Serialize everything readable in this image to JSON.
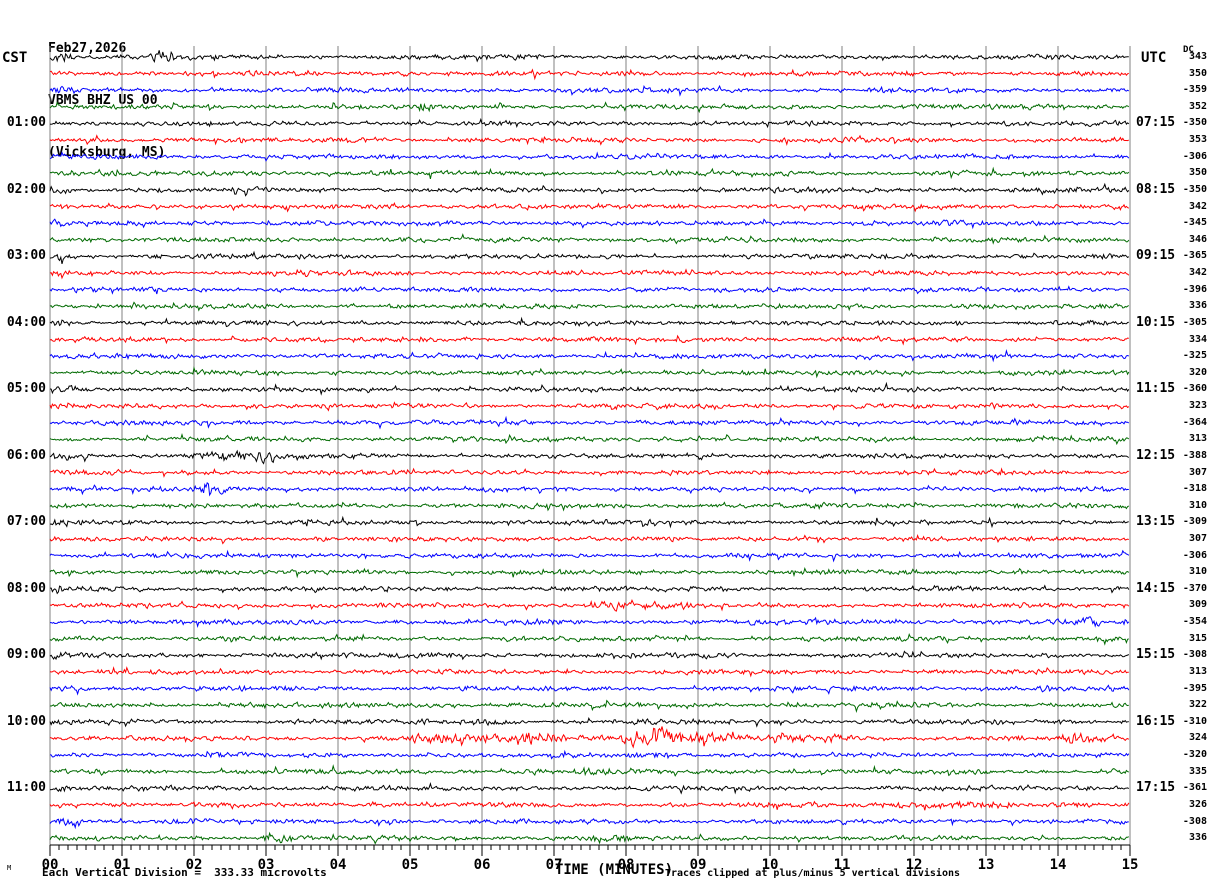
{
  "header": {
    "date": "Feb27,2026",
    "station": "VBMS BHZ US 00",
    "location": "(Vicksburg, MS)"
  },
  "axes": {
    "left_timezone": "CST",
    "right_timezone": "UTC",
    "dc_header": "DC",
    "x_title": "TIME (MINUTES)",
    "x_ticks": [
      "00",
      "01",
      "02",
      "03",
      "04",
      "05",
      "06",
      "07",
      "08",
      "09",
      "10",
      "11",
      "12",
      "13",
      "14",
      "15"
    ],
    "footer_scale": "Each Vertical Division =  333.33 microvolts",
    "footer_clip": "Traces clipped at plus/minus 5 vertical divisions",
    "corner_mark": "M"
  },
  "chart_data": {
    "type": "line",
    "subtype": "seismogram-helicorder",
    "title": "VBMS BHZ US 00 (Vicksburg, MS) Feb27,2026",
    "minutes_per_row": 15,
    "x_range": [
      0,
      15
    ],
    "xlabel": "TIME (MINUTES)",
    "grid": "vertical lines every 1 minute",
    "minor_ticks_per_minute": 8,
    "row_color_cycle": [
      "black",
      "red",
      "blue",
      "green"
    ],
    "colors": {
      "black": "#000000",
      "red": "#ff0000",
      "blue": "#0000ff",
      "green": "#006a00",
      "grid": "#808080"
    },
    "scale_note": "1 vertical division = 333.33 microvolts",
    "clip_note": "traces clipped at plus/minus 5 vertical divisions",
    "traces": [
      {
        "color": "black",
        "dc": 343,
        "events": [
          [
            0,
            0.35,
            4.5
          ],
          [
            1.42,
            1.72,
            4.5
          ]
        ]
      },
      {
        "color": "red",
        "dc": 350,
        "events": []
      },
      {
        "color": "blue",
        "dc": -359,
        "events": [
          [
            0,
            0.4,
            1.7
          ]
        ]
      },
      {
        "color": "green",
        "dc": 352,
        "events": [
          [
            5.05,
            5.35,
            2.6
          ]
        ]
      },
      {
        "color": "black",
        "dc": -350,
        "cst": "01:00",
        "utc": "07:15",
        "events": [
          [
            0,
            0.35,
            1.9
          ]
        ]
      },
      {
        "color": "red",
        "dc": 353,
        "events": []
      },
      {
        "color": "blue",
        "dc": -306,
        "events": []
      },
      {
        "color": "green",
        "dc": 350,
        "events": []
      },
      {
        "color": "black",
        "dc": -350,
        "cst": "02:00",
        "utc": "08:15",
        "events": [
          [
            0,
            0.35,
            1.9
          ]
        ]
      },
      {
        "color": "red",
        "dc": 342,
        "events": []
      },
      {
        "color": "blue",
        "dc": -345,
        "events": [
          [
            0,
            0.3,
            1.6
          ]
        ]
      },
      {
        "color": "green",
        "dc": 346,
        "events": []
      },
      {
        "color": "black",
        "dc": -365,
        "cst": "03:00",
        "utc": "09:15",
        "events": [
          [
            0,
            0.4,
            2.0
          ]
        ]
      },
      {
        "color": "red",
        "dc": 342,
        "events": []
      },
      {
        "color": "blue",
        "dc": -396,
        "events": []
      },
      {
        "color": "green",
        "dc": 336,
        "events": []
      },
      {
        "color": "black",
        "dc": -305,
        "cst": "04:00",
        "utc": "10:15",
        "events": [
          [
            0,
            0.35,
            1.8
          ]
        ]
      },
      {
        "color": "red",
        "dc": 334,
        "events": []
      },
      {
        "color": "blue",
        "dc": -325,
        "events": []
      },
      {
        "color": "green",
        "dc": 320,
        "events": []
      },
      {
        "color": "black",
        "dc": -360,
        "cst": "05:00",
        "utc": "11:15",
        "events": [
          [
            0,
            0.4,
            1.9
          ]
        ]
      },
      {
        "color": "red",
        "dc": 323,
        "events": []
      },
      {
        "color": "blue",
        "dc": -364,
        "events": []
      },
      {
        "color": "green",
        "dc": 313,
        "events": []
      },
      {
        "color": "black",
        "dc": -388,
        "cst": "06:00",
        "utc": "12:15",
        "events": [
          [
            0,
            0.3,
            1.8
          ],
          [
            1.85,
            2.5,
            2.3
          ],
          [
            2.45,
            3.15,
            3.3
          ],
          [
            3.1,
            3.5,
            1.9
          ]
        ]
      },
      {
        "color": "red",
        "dc": 307,
        "events": []
      },
      {
        "color": "blue",
        "dc": -318,
        "events": [
          [
            0.1,
            0.55,
            1.8
          ],
          [
            2.0,
            2.5,
            2.4
          ]
        ]
      },
      {
        "color": "green",
        "dc": 310,
        "events": []
      },
      {
        "color": "black",
        "dc": -309,
        "cst": "07:00",
        "utc": "13:15",
        "events": [
          [
            0,
            0.3,
            1.8
          ]
        ]
      },
      {
        "color": "red",
        "dc": 307,
        "events": []
      },
      {
        "color": "blue",
        "dc": -306,
        "events": []
      },
      {
        "color": "green",
        "dc": 310,
        "events": []
      },
      {
        "color": "black",
        "dc": -370,
        "cst": "08:00",
        "utc": "14:15",
        "events": [
          [
            0,
            0.3,
            1.7
          ]
        ]
      },
      {
        "color": "red",
        "dc": 309,
        "events": [
          [
            7.4,
            8.2,
            2.7
          ],
          [
            8.2,
            8.9,
            1.6
          ]
        ]
      },
      {
        "color": "blue",
        "dc": -354,
        "events": [
          [
            14.15,
            14.6,
            2.0
          ]
        ]
      },
      {
        "color": "green",
        "dc": 315,
        "events": [
          [
            14.35,
            14.8,
            1.8
          ]
        ]
      },
      {
        "color": "black",
        "dc": -308,
        "cst": "09:00",
        "utc": "15:15",
        "events": [
          [
            0,
            0.3,
            1.8
          ]
        ]
      },
      {
        "color": "red",
        "dc": 313,
        "events": []
      },
      {
        "color": "blue",
        "dc": -395,
        "events": [
          [
            0.05,
            0.4,
            2.0
          ]
        ]
      },
      {
        "color": "green",
        "dc": 322,
        "events": []
      },
      {
        "color": "black",
        "dc": -310,
        "cst": "10:00",
        "utc": "16:15",
        "events": [
          [
            0,
            0.3,
            1.8
          ],
          [
            5.6,
            6.6,
            1.7
          ]
        ]
      },
      {
        "color": "red",
        "dc": 324,
        "events": [
          [
            4.9,
            6.3,
            2.2
          ],
          [
            6.3,
            7.9,
            2.6
          ],
          [
            7.9,
            8.8,
            6.5
          ],
          [
            8.8,
            9.6,
            2.2
          ],
          [
            9.6,
            11.4,
            1.8
          ],
          [
            13.9,
            14.9,
            2.0
          ]
        ]
      },
      {
        "color": "blue",
        "dc": -320,
        "events": [
          [
            6.9,
            7.3,
            1.7
          ],
          [
            8.0,
            8.6,
            1.9
          ]
        ]
      },
      {
        "color": "green",
        "dc": 335,
        "events": [
          [
            7.3,
            7.8,
            1.7
          ]
        ]
      },
      {
        "color": "black",
        "dc": -361,
        "cst": "11:00",
        "utc": "17:15",
        "events": [
          [
            0,
            0.35,
            2.0
          ]
        ]
      },
      {
        "color": "red",
        "dc": 326,
        "events": [
          [
            11.4,
            13.4,
            2.3
          ]
        ]
      },
      {
        "color": "blue",
        "dc": -308,
        "events": [
          [
            0.05,
            0.6,
            1.9
          ],
          [
            1.4,
            2.3,
            1.7
          ]
        ]
      },
      {
        "color": "green",
        "dc": 336,
        "events": [
          [
            2.95,
            3.4,
            1.8
          ],
          [
            7.5,
            8.05,
            1.8
          ]
        ]
      }
    ]
  }
}
